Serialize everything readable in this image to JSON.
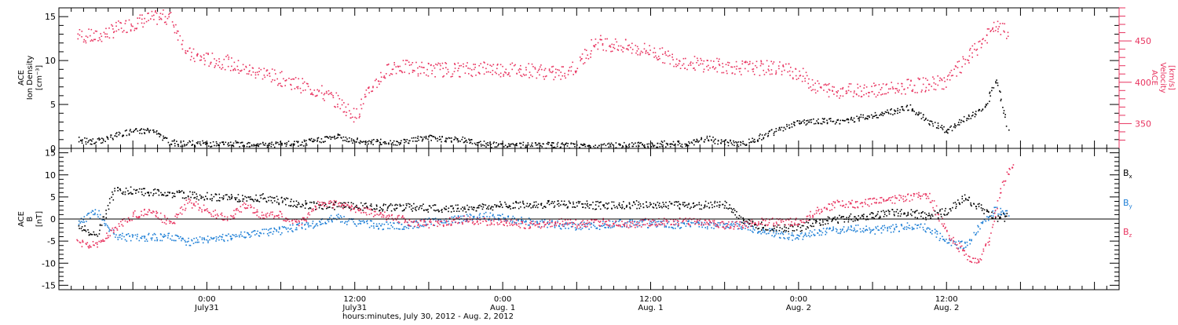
{
  "colors": {
    "black": "#000000",
    "pink": "#e8335f",
    "blue": "#1e7fd6",
    "axis": "#000000"
  },
  "chart_data": [
    {
      "type": "scatter",
      "panel": "top",
      "ylabel_lines": [
        "ACE",
        "Ion Density",
        "[cm⁻³]"
      ],
      "ylim": [
        0,
        16
      ],
      "yticks": [
        0,
        5,
        10,
        15
      ],
      "y2label_lines": [
        "ACE",
        "Velocity",
        "[km/s]"
      ],
      "y2lim": [
        320,
        490
      ],
      "y2ticks": [
        350,
        400,
        450
      ],
      "y2ticklabels": [
        "350",
        "400",
        "450"
      ],
      "series": [
        {
          "key": "density",
          "axis": "left",
          "color": "#000000",
          "points": [
            [
              -21,
              1.0
            ],
            [
              -18,
              0.8
            ],
            [
              -15,
              1.5
            ],
            [
              -12,
              2.0
            ],
            [
              -9,
              2.1
            ],
            [
              -6,
              0.7
            ],
            [
              -3,
              0.6
            ],
            [
              0,
              0.6
            ],
            [
              3,
              0.5
            ],
            [
              6,
              0.6
            ],
            [
              9,
              0.5
            ],
            [
              12,
              0.5
            ],
            [
              15,
              0.6
            ],
            [
              18,
              1.0
            ],
            [
              21,
              1.4
            ],
            [
              24,
              0.9
            ],
            [
              27,
              0.8
            ],
            [
              30,
              0.7
            ],
            [
              33,
              1.0
            ],
            [
              36,
              1.3
            ],
            [
              39,
              1.1
            ],
            [
              42,
              1.0
            ],
            [
              45,
              0.5
            ],
            [
              48,
              0.4
            ],
            [
              51,
              0.4
            ],
            [
              54,
              0.4
            ],
            [
              57,
              0.4
            ],
            [
              60,
              0.3
            ],
            [
              63,
              0.3
            ],
            [
              66,
              0.4
            ],
            [
              69,
              0.4
            ],
            [
              72,
              0.5
            ],
            [
              75,
              0.6
            ],
            [
              78,
              0.5
            ],
            [
              81,
              1.2
            ],
            [
              84,
              0.7
            ],
            [
              87,
              0.6
            ],
            [
              90,
              1.4
            ],
            [
              93,
              2.2
            ],
            [
              96,
              3.0
            ],
            [
              99,
              3.2
            ],
            [
              102,
              3.1
            ],
            [
              105,
              3.4
            ],
            [
              108,
              3.8
            ],
            [
              111,
              4.2
            ],
            [
              114,
              4.7
            ],
            [
              117,
              3.2
            ],
            [
              120,
              2.0
            ],
            [
              123,
              3.5
            ],
            [
              126,
              4.5
            ],
            [
              128,
              8.0
            ],
            [
              130,
              2.0
            ]
          ]
        },
        {
          "key": "velocity",
          "axis": "right",
          "color": "#e8335f",
          "points": [
            [
              -21,
              458
            ],
            [
              -18,
              455
            ],
            [
              -15,
              464
            ],
            [
              -12,
              472
            ],
            [
              -9,
              478
            ],
            [
              -6,
              480
            ],
            [
              -3,
              434
            ],
            [
              0,
              428
            ],
            [
              3,
              425
            ],
            [
              6,
              416
            ],
            [
              9,
              412
            ],
            [
              12,
              405
            ],
            [
              15,
              397
            ],
            [
              18,
              390
            ],
            [
              21,
              378
            ],
            [
              24,
              360
            ],
            [
              27,
              398
            ],
            [
              30,
              420
            ],
            [
              33,
              418
            ],
            [
              36,
              416
            ],
            [
              39,
              416
            ],
            [
              42,
              416
            ],
            [
              45,
              418
            ],
            [
              48,
              416
            ],
            [
              51,
              416
            ],
            [
              54,
              414
            ],
            [
              57,
              410
            ],
            [
              60,
              420
            ],
            [
              63,
              450
            ],
            [
              66,
              446
            ],
            [
              69,
              442
            ],
            [
              72,
              438
            ],
            [
              75,
              430
            ],
            [
              78,
              424
            ],
            [
              81,
              422
            ],
            [
              84,
              420
            ],
            [
              87,
              418
            ],
            [
              90,
              418
            ],
            [
              93,
              418
            ],
            [
              96,
              412
            ],
            [
              99,
              394
            ],
            [
              102,
              390
            ],
            [
              105,
              392
            ],
            [
              108,
              392
            ],
            [
              111,
              392
            ],
            [
              114,
              396
            ],
            [
              117,
              398
            ],
            [
              120,
              402
            ],
            [
              123,
              426
            ],
            [
              126,
              452
            ],
            [
              128,
              468
            ],
            [
              130,
              460
            ]
          ]
        }
      ]
    },
    {
      "type": "scatter",
      "panel": "bottom",
      "ylabel_lines": [
        "ACE",
        "B",
        "[nT]"
      ],
      "ylim": [
        -16,
        16
      ],
      "yticks": [
        -15,
        -10,
        -5,
        0,
        5,
        10,
        15
      ],
      "zero_line": true,
      "series": [
        {
          "name": "Bx",
          "label_main": "B",
          "label_sub": "x",
          "color": "#000000",
          "points": [
            [
              -21,
              -1
            ],
            [
              -18,
              -4
            ],
            [
              -15,
              6.5
            ],
            [
              -12,
              6.5
            ],
            [
              -9,
              6.2
            ],
            [
              -6,
              5.8
            ],
            [
              -3,
              5.5
            ],
            [
              0,
              5.2
            ],
            [
              3,
              5.0
            ],
            [
              6,
              4.8
            ],
            [
              9,
              5.0
            ],
            [
              12,
              4.2
            ],
            [
              15,
              3.6
            ],
            [
              18,
              3.0
            ],
            [
              21,
              3.2
            ],
            [
              24,
              3.0
            ],
            [
              27,
              2.8
            ],
            [
              30,
              2.8
            ],
            [
              33,
              2.8
            ],
            [
              36,
              2.5
            ],
            [
              39,
              2.5
            ],
            [
              42,
              2.6
            ],
            [
              45,
              2.8
            ],
            [
              48,
              3.2
            ],
            [
              51,
              3.4
            ],
            [
              54,
              3.3
            ],
            [
              57,
              3.5
            ],
            [
              60,
              3.4
            ],
            [
              63,
              3.2
            ],
            [
              66,
              3.3
            ],
            [
              69,
              3.4
            ],
            [
              72,
              3.4
            ],
            [
              75,
              3.3
            ],
            [
              78,
              3.2
            ],
            [
              81,
              3.3
            ],
            [
              84,
              3.5
            ],
            [
              87,
              -0.5
            ],
            [
              90,
              -1.5
            ],
            [
              93,
              -2.0
            ],
            [
              96,
              -1.8
            ],
            [
              99,
              -0.5
            ],
            [
              102,
              0.0
            ],
            [
              105,
              0.5
            ],
            [
              108,
              1.0
            ],
            [
              111,
              1.5
            ],
            [
              114,
              1.8
            ],
            [
              117,
              0.5
            ],
            [
              120,
              2.0
            ],
            [
              123,
              5.0
            ],
            [
              126,
              2.0
            ],
            [
              128,
              0.5
            ],
            [
              130,
              0.5
            ]
          ]
        },
        {
          "name": "By",
          "label_main": "B",
          "label_sub": "y",
          "color": "#1e7fd6",
          "points": [
            [
              -21,
              -1
            ],
            [
              -18,
              2
            ],
            [
              -15,
              -4
            ],
            [
              -12,
              -4
            ],
            [
              -9,
              -4
            ],
            [
              -6,
              -4
            ],
            [
              -3,
              -5
            ],
            [
              0,
              -4.5
            ],
            [
              3,
              -4
            ],
            [
              6,
              -3.5
            ],
            [
              9,
              -3
            ],
            [
              12,
              -2.5
            ],
            [
              15,
              -1.5
            ],
            [
              18,
              -1
            ],
            [
              21,
              0.5
            ],
            [
              24,
              -0.8
            ],
            [
              27,
              -1.2
            ],
            [
              30,
              -1.5
            ],
            [
              33,
              -1.2
            ],
            [
              36,
              -0.5
            ],
            [
              39,
              -0.3
            ],
            [
              42,
              0.5
            ],
            [
              45,
              0.8
            ],
            [
              48,
              0.5
            ],
            [
              51,
              -0.3
            ],
            [
              54,
              -0.8
            ],
            [
              57,
              -1.2
            ],
            [
              60,
              -1.5
            ],
            [
              63,
              -1.5
            ],
            [
              66,
              -1.0
            ],
            [
              69,
              -0.8
            ],
            [
              72,
              -1.0
            ],
            [
              75,
              -1.2
            ],
            [
              78,
              -1.0
            ],
            [
              81,
              -1.2
            ],
            [
              84,
              -1.0
            ],
            [
              87,
              -1.5
            ],
            [
              90,
              -2.5
            ],
            [
              93,
              -3.5
            ],
            [
              96,
              -4.0
            ],
            [
              99,
              -3.0
            ],
            [
              102,
              -2.5
            ],
            [
              105,
              -2.0
            ],
            [
              108,
              -2.5
            ],
            [
              111,
              -2.0
            ],
            [
              114,
              -1.5
            ],
            [
              117,
              -2.0
            ],
            [
              120,
              -5.0
            ],
            [
              123,
              -6.0
            ],
            [
              126,
              0.0
            ],
            [
              128,
              2.0
            ],
            [
              130,
              1.0
            ]
          ]
        },
        {
          "name": "Bz",
          "label_main": "B",
          "label_sub": "z",
          "color": "#e8335f",
          "points": [
            [
              -21,
              -5
            ],
            [
              -18,
              -6
            ],
            [
              -15,
              -2
            ],
            [
              -12,
              1
            ],
            [
              -9,
              2
            ],
            [
              -6,
              -1
            ],
            [
              -3,
              4
            ],
            [
              0,
              2
            ],
            [
              3,
              0
            ],
            [
              6,
              3
            ],
            [
              9,
              1
            ],
            [
              12,
              1
            ],
            [
              15,
              -1
            ],
            [
              18,
              3.5
            ],
            [
              21,
              3.5
            ],
            [
              24,
              2.5
            ],
            [
              27,
              1.5
            ],
            [
              30,
              0.5
            ],
            [
              33,
              -0.5
            ],
            [
              36,
              -1.0
            ],
            [
              39,
              -0.5
            ],
            [
              42,
              0.0
            ],
            [
              45,
              -0.5
            ],
            [
              48,
              -0.8
            ],
            [
              51,
              -1.0
            ],
            [
              54,
              -1.5
            ],
            [
              57,
              -0.5
            ],
            [
              60,
              -1.0
            ],
            [
              63,
              -0.5
            ],
            [
              66,
              -0.8
            ],
            [
              69,
              -1.0
            ],
            [
              72,
              -0.5
            ],
            [
              75,
              -0.5
            ],
            [
              78,
              -0.5
            ],
            [
              81,
              -0.5
            ],
            [
              84,
              -1.5
            ],
            [
              87,
              -1.0
            ],
            [
              90,
              -0.5
            ],
            [
              93,
              -0.5
            ],
            [
              96,
              -0.5
            ],
            [
              99,
              2.0
            ],
            [
              102,
              3.5
            ],
            [
              105,
              3.5
            ],
            [
              108,
              4.0
            ],
            [
              111,
              4.5
            ],
            [
              114,
              5.0
            ],
            [
              117,
              5.5
            ],
            [
              120,
              -3.0
            ],
            [
              123,
              -8.0
            ],
            [
              125,
              -10.0
            ],
            [
              127,
              -4.0
            ],
            [
              129,
              8.0
            ],
            [
              131,
              13.0
            ]
          ]
        }
      ]
    }
  ],
  "x_axis": {
    "xlim": [
      -24,
      148
    ],
    "major_ticks": [
      {
        "hours": 0,
        "time": "0:00",
        "date": "July31"
      },
      {
        "hours": 24,
        "time": "12:00",
        "date": "July31"
      },
      {
        "hours": 48,
        "time": "0:00",
        "date": "Aug. 1"
      },
      {
        "hours": 72,
        "time": "12:00",
        "date": "Aug. 1"
      },
      {
        "hours": 96,
        "time": "0:00",
        "date": "Aug. 2"
      },
      {
        "hours": 120,
        "time": "12:00",
        "date": "Aug. 2"
      }
    ],
    "title": "hours:minutes, July 30, 2012 - Aug.  2, 2012"
  }
}
